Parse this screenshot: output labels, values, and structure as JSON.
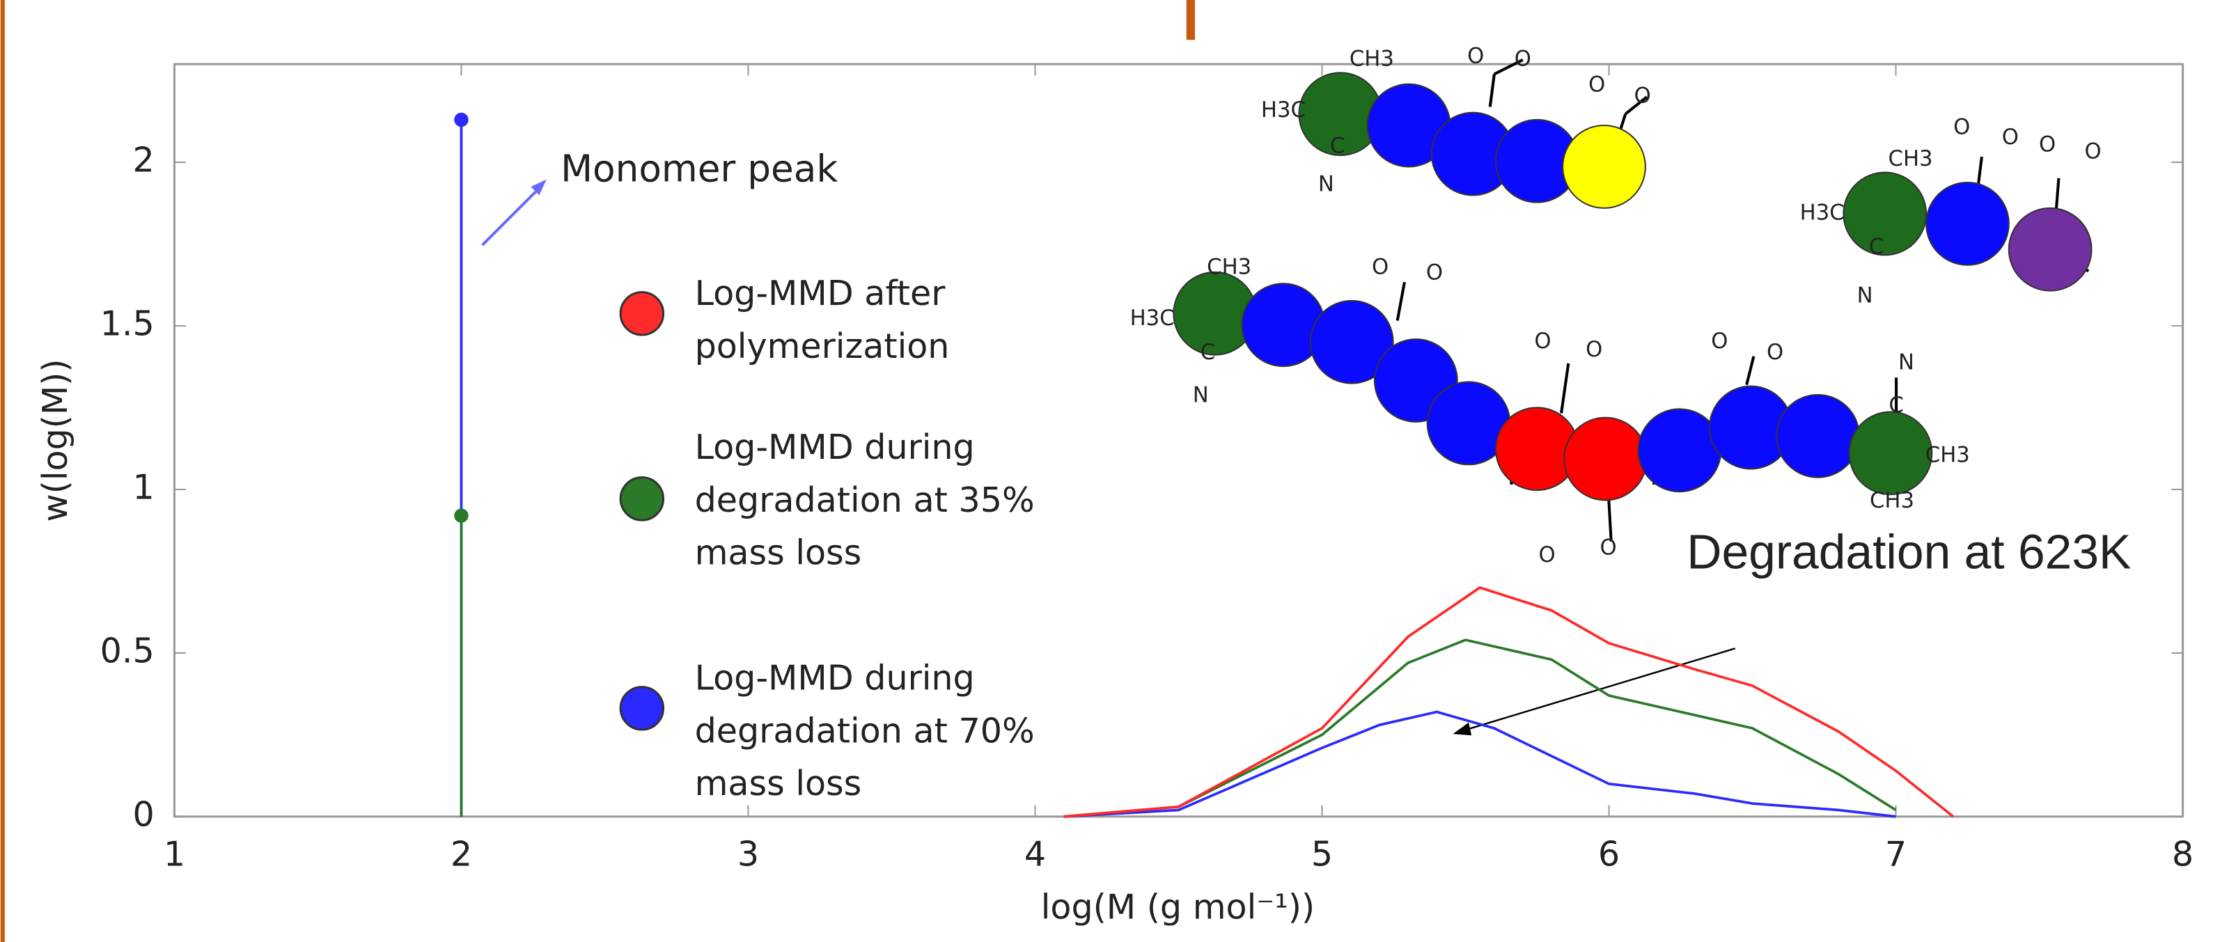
{
  "chart_data": {
    "type": "line",
    "x_label": "log(M (g mol⁻¹))",
    "y_label": "w(log(M))",
    "xlim": [
      1,
      8
    ],
    "ylim": [
      0,
      2.3
    ],
    "xticks": [
      1,
      2,
      3,
      4,
      5,
      6,
      7,
      8
    ],
    "yticks": [
      0,
      0.5,
      1,
      1.5,
      2
    ],
    "series": [
      {
        "name": "Log-MMD after polymerization",
        "color": "#ff2a2a",
        "x": [
          4.1,
          4.5,
          5,
          5.3,
          5.55,
          5.8,
          6,
          6.3,
          6.5,
          6.8,
          7,
          7.2
        ],
        "values": [
          0,
          0.03,
          0.27,
          0.55,
          0.7,
          0.63,
          0.53,
          0.45,
          0.4,
          0.26,
          0.14,
          0
        ]
      },
      {
        "name": "Log-MMD during degradation at 35% mass loss",
        "color": "#2a7a2a",
        "x": [
          4.1,
          4.5,
          5,
          5.3,
          5.5,
          5.8,
          6,
          6.3,
          6.5,
          6.8,
          7
        ],
        "values": [
          0,
          0.03,
          0.25,
          0.47,
          0.54,
          0.48,
          0.37,
          0.31,
          0.27,
          0.13,
          0.02
        ],
        "monomer_peak": {
          "x": 2,
          "value": 0.92
        }
      },
      {
        "name": "Log-MMD during degradation at 70% mass loss",
        "color": "#2a2aff",
        "x": [
          4.1,
          4.5,
          5,
          5.2,
          5.4,
          5.6,
          6,
          6.3,
          6.5,
          6.8,
          7
        ],
        "values": [
          0,
          0.02,
          0.21,
          0.28,
          0.32,
          0.27,
          0.1,
          0.07,
          0.04,
          0.02,
          0
        ]
      },
      {
        "name": "",
        "color": "#2a2aff",
        "x": [],
        "values": [],
        "monomer_peak": {
          "x": 2,
          "value": 2.13
        }
      }
    ],
    "annotations": [
      "Monomer peak",
      "Degradation at 623K"
    ],
    "molecule_labels": [
      "CH3",
      "H3C",
      "C",
      "N",
      "O",
      "O",
      "O",
      "O",
      "CH3",
      "H3C",
      "C",
      "N",
      "O",
      "O",
      "O",
      "O",
      "CH3",
      "H3C",
      "C",
      "N",
      "O",
      "O",
      "O",
      "O",
      "O",
      "O",
      "O",
      "O",
      "N",
      "C",
      "CH3",
      "CH3"
    ]
  }
}
